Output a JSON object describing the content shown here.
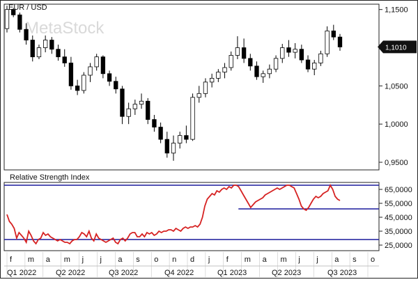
{
  "watermark": "MetaStock",
  "colors": {
    "background": "#ffffff",
    "frame": "#222222",
    "candle_body_up": "#ffffff",
    "candle_body_down": "#000000",
    "rsi_line": "#d62222",
    "rsi_levels": "#1a1a9c",
    "price_tag_bg": "#111111",
    "price_tag_text": "#ffffff",
    "watermark": "#d9d9d9"
  },
  "chart_data": [
    {
      "type": "candlestick",
      "title": "EUR / USD",
      "xlabel": "",
      "ylabel": "",
      "ylim": [
        0.94,
        1.157
      ],
      "yticks": [
        "1,1500",
        "1,1010",
        "1,0500",
        "1,0000",
        "0,9500"
      ],
      "ytick_values": [
        1.15,
        1.101,
        1.05,
        1.0,
        0.95
      ],
      "last_price_label": "1,1010",
      "last_price": 1.101,
      "candles": [
        {
          "o": 1.125,
          "h": 1.155,
          "l": 1.12,
          "c": 1.15
        },
        {
          "o": 1.15,
          "h": 1.152,
          "l": 1.14,
          "c": 1.143
        },
        {
          "o": 1.143,
          "h": 1.146,
          "l": 1.12,
          "c": 1.124
        },
        {
          "o": 1.124,
          "h": 1.132,
          "l": 1.104,
          "c": 1.11
        },
        {
          "o": 1.11,
          "h": 1.116,
          "l": 1.082,
          "c": 1.088
        },
        {
          "o": 1.088,
          "h": 1.104,
          "l": 1.085,
          "c": 1.1
        },
        {
          "o": 1.1,
          "h": 1.116,
          "l": 1.094,
          "c": 1.11
        },
        {
          "o": 1.11,
          "h": 1.114,
          "l": 1.092,
          "c": 1.098
        },
        {
          "o": 1.098,
          "h": 1.104,
          "l": 1.083,
          "c": 1.088
        },
        {
          "o": 1.088,
          "h": 1.098,
          "l": 1.075,
          "c": 1.08
        },
        {
          "o": 1.08,
          "h": 1.088,
          "l": 1.045,
          "c": 1.05
        },
        {
          "o": 1.05,
          "h": 1.058,
          "l": 1.038,
          "c": 1.044
        },
        {
          "o": 1.044,
          "h": 1.068,
          "l": 1.04,
          "c": 1.064
        },
        {
          "o": 1.064,
          "h": 1.08,
          "l": 1.055,
          "c": 1.075
        },
        {
          "o": 1.075,
          "h": 1.092,
          "l": 1.07,
          "c": 1.088
        },
        {
          "o": 1.088,
          "h": 1.09,
          "l": 1.06,
          "c": 1.066
        },
        {
          "o": 1.066,
          "h": 1.07,
          "l": 1.05,
          "c": 1.056
        },
        {
          "o": 1.056,
          "h": 1.062,
          "l": 1.04,
          "c": 1.046
        },
        {
          "o": 1.046,
          "h": 1.05,
          "l": 1.0,
          "c": 1.01
        },
        {
          "o": 1.01,
          "h": 1.028,
          "l": 1.0,
          "c": 1.02
        },
        {
          "o": 1.02,
          "h": 1.032,
          "l": 1.012,
          "c": 1.026
        },
        {
          "o": 1.026,
          "h": 1.04,
          "l": 1.02,
          "c": 1.03
        },
        {
          "o": 1.03,
          "h": 1.034,
          "l": 1.0,
          "c": 1.006
        },
        {
          "o": 1.006,
          "h": 1.012,
          "l": 0.99,
          "c": 0.996
        },
        {
          "o": 0.996,
          "h": 1.002,
          "l": 0.975,
          "c": 0.98
        },
        {
          "o": 0.98,
          "h": 0.99,
          "l": 0.956,
          "c": 0.962
        },
        {
          "o": 0.962,
          "h": 0.985,
          "l": 0.952,
          "c": 0.975
        },
        {
          "o": 0.975,
          "h": 0.99,
          "l": 0.968,
          "c": 0.985
        },
        {
          "o": 0.985,
          "h": 0.998,
          "l": 0.975,
          "c": 0.98
        },
        {
          "o": 0.98,
          "h": 1.04,
          "l": 0.978,
          "c": 1.035
        },
        {
          "o": 1.035,
          "h": 1.05,
          "l": 1.028,
          "c": 1.04
        },
        {
          "o": 1.04,
          "h": 1.06,
          "l": 1.035,
          "c": 1.055
        },
        {
          "o": 1.055,
          "h": 1.066,
          "l": 1.048,
          "c": 1.06
        },
        {
          "o": 1.06,
          "h": 1.072,
          "l": 1.055,
          "c": 1.068
        },
        {
          "o": 1.068,
          "h": 1.08,
          "l": 1.06,
          "c": 1.074
        },
        {
          "o": 1.074,
          "h": 1.095,
          "l": 1.07,
          "c": 1.09
        },
        {
          "o": 1.09,
          "h": 1.115,
          "l": 1.085,
          "c": 1.1
        },
        {
          "o": 1.1,
          "h": 1.112,
          "l": 1.08,
          "c": 1.086
        },
        {
          "o": 1.086,
          "h": 1.092,
          "l": 1.07,
          "c": 1.076
        },
        {
          "o": 1.076,
          "h": 1.082,
          "l": 1.058,
          "c": 1.062
        },
        {
          "o": 1.062,
          "h": 1.07,
          "l": 1.054,
          "c": 1.066
        },
        {
          "o": 1.066,
          "h": 1.078,
          "l": 1.06,
          "c": 1.072
        },
        {
          "o": 1.072,
          "h": 1.09,
          "l": 1.068,
          "c": 1.086
        },
        {
          "o": 1.086,
          "h": 1.105,
          "l": 1.08,
          "c": 1.1
        },
        {
          "o": 1.1,
          "h": 1.11,
          "l": 1.088,
          "c": 1.094
        },
        {
          "o": 1.094,
          "h": 1.106,
          "l": 1.086,
          "c": 1.098
        },
        {
          "o": 1.098,
          "h": 1.104,
          "l": 1.08,
          "c": 1.084
        },
        {
          "o": 1.084,
          "h": 1.09,
          "l": 1.068,
          "c": 1.072
        },
        {
          "o": 1.072,
          "h": 1.084,
          "l": 1.064,
          "c": 1.08
        },
        {
          "o": 1.08,
          "h": 1.096,
          "l": 1.076,
          "c": 1.092
        },
        {
          "o": 1.092,
          "h": 1.128,
          "l": 1.088,
          "c": 1.122
        },
        {
          "o": 1.122,
          "h": 1.13,
          "l": 1.11,
          "c": 1.114
        },
        {
          "o": 1.114,
          "h": 1.118,
          "l": 1.096,
          "c": 1.101
        }
      ]
    },
    {
      "type": "line",
      "title": "Relative Strength Index",
      "xlabel": "",
      "ylabel": "",
      "ylim": [
        21,
        70
      ],
      "yticks": [
        "65,0000",
        "55,0000",
        "45,0000",
        "35,0000",
        "25,0000"
      ],
      "ytick_values": [
        65,
        55,
        45,
        35,
        25
      ],
      "levels": [
        {
          "value": 68,
          "from": 0.0,
          "to": 1.0
        },
        {
          "value": 51,
          "from": 0.625,
          "to": 1.0
        },
        {
          "value": 29,
          "from": 0.0,
          "to": 1.0
        }
      ],
      "series": [
        {
          "name": "",
          "values": [
            47,
            42,
            40,
            37,
            30,
            34,
            32,
            30,
            27,
            35,
            32,
            28,
            26,
            29,
            30,
            34,
            32,
            33,
            31,
            30,
            29,
            28,
            29,
            28,
            27,
            27,
            26,
            28,
            29,
            29,
            31,
            34,
            33,
            31,
            35,
            30,
            28,
            33,
            30,
            29,
            28,
            27,
            28,
            29,
            30,
            27,
            26,
            29,
            30,
            28,
            30,
            33,
            34,
            34,
            31,
            31,
            33,
            31,
            34,
            33,
            34,
            32,
            33,
            35,
            34,
            35,
            35,
            36,
            36,
            35,
            37,
            36,
            35,
            37,
            38,
            37,
            38,
            38,
            39,
            38,
            40,
            45,
            53,
            58,
            60,
            62,
            61,
            64,
            63,
            65,
            66,
            65,
            67,
            66,
            68,
            68,
            67,
            64,
            61,
            58,
            55,
            52,
            54,
            56,
            57,
            58,
            59,
            61,
            62,
            63,
            64,
            65,
            66,
            65,
            66,
            67,
            68,
            68,
            67,
            66,
            62,
            58,
            53,
            51,
            50,
            52,
            55,
            58,
            60,
            59,
            60,
            62,
            63,
            64,
            68,
            65,
            60,
            58,
            57
          ]
        }
      ]
    }
  ],
  "time_axis": {
    "month_labels": [
      "f",
      "m",
      "a",
      "m",
      "j",
      "j",
      "a",
      "s",
      "o",
      "n",
      "d",
      "j",
      "f",
      "m",
      "a",
      "m",
      "j",
      "j",
      "a",
      "s",
      "o"
    ],
    "quarter_labels": [
      "Q1 2022",
      "Q2 2022",
      "Q3 2022",
      "Q4 2022",
      "Q1 2023",
      "Q2 2023",
      "Q3 2023"
    ]
  }
}
